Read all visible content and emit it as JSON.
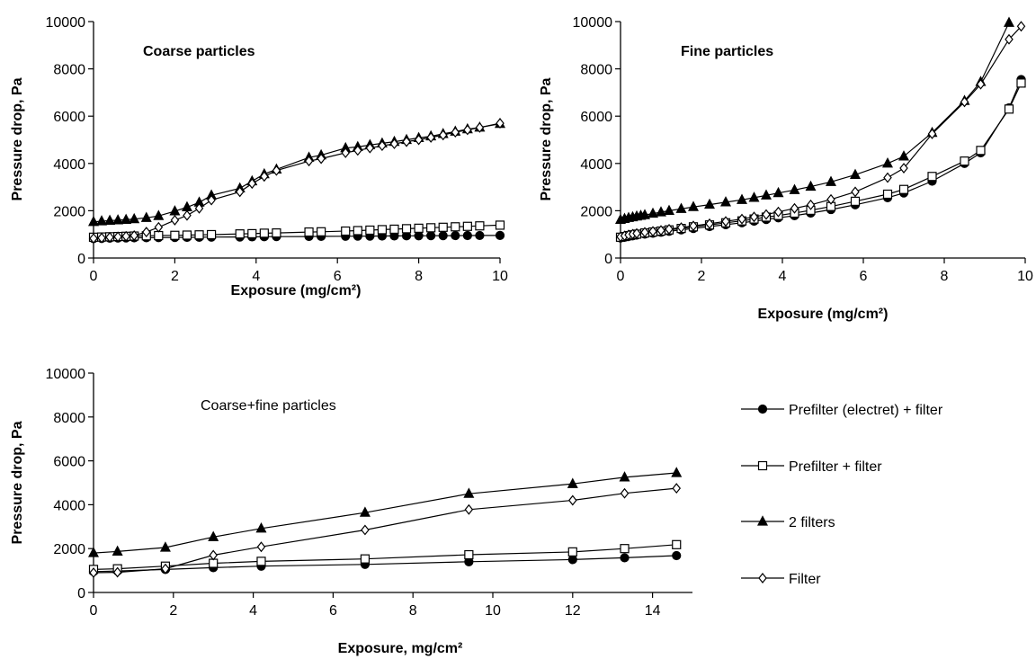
{
  "legend": {
    "placement": "right-of-bottom-chart",
    "entries": [
      {
        "name": "Prefilter (electret) + filter",
        "marker": "circle-filled"
      },
      {
        "name": "Prefilter + filter",
        "marker": "square-open"
      },
      {
        "name": "2 filters",
        "marker": "triangle-filled"
      },
      {
        "name": "Filter",
        "marker": "diamond-open"
      }
    ]
  },
  "chart_data": [
    {
      "type": "line",
      "annotation": "Coarse particles",
      "xlabel": "Exposure (mg/cm²)",
      "ylabel": "Pressure drop, Pa",
      "xlim": [
        0,
        10
      ],
      "ylim": [
        0,
        10000
      ],
      "xticks": [
        "0",
        "2",
        "4",
        "6",
        "8",
        "10"
      ],
      "yticks": [
        "0",
        "2000",
        "4000",
        "6000",
        "8000",
        "10000"
      ],
      "grid": false,
      "series": [
        {
          "name": "Prefilter (electret) + filter",
          "marker": "circle-filled",
          "x": [
            0,
            0.2,
            0.4,
            0.6,
            0.8,
            1.0,
            1.3,
            1.6,
            2.0,
            2.3,
            2.6,
            2.9,
            3.6,
            3.9,
            4.2,
            4.5,
            5.3,
            5.6,
            6.2,
            6.5,
            6.8,
            7.1,
            7.4,
            7.7,
            8.0,
            8.3,
            8.6,
            8.9,
            9.2,
            9.5,
            10.0
          ],
          "y": [
            820,
            830,
            840,
            845,
            850,
            855,
            860,
            865,
            870,
            875,
            880,
            885,
            890,
            895,
            900,
            905,
            910,
            915,
            920,
            925,
            928,
            932,
            935,
            938,
            940,
            943,
            946,
            948,
            950,
            953,
            955
          ]
        },
        {
          "name": "Prefilter + filter",
          "marker": "square-open",
          "x": [
            0,
            0.2,
            0.4,
            0.6,
            0.8,
            1.0,
            1.3,
            1.6,
            2.0,
            2.3,
            2.6,
            2.9,
            3.6,
            3.9,
            4.2,
            4.5,
            5.3,
            5.6,
            6.2,
            6.5,
            6.8,
            7.1,
            7.4,
            7.7,
            8.0,
            8.3,
            8.6,
            8.9,
            9.2,
            9.5,
            10.0
          ],
          "y": [
            880,
            890,
            900,
            910,
            920,
            930,
            940,
            950,
            960,
            970,
            980,
            990,
            1020,
            1030,
            1050,
            1060,
            1100,
            1110,
            1140,
            1160,
            1180,
            1200,
            1220,
            1240,
            1260,
            1280,
            1300,
            1320,
            1340,
            1360,
            1390
          ]
        },
        {
          "name": "2 filters",
          "marker": "triangle-filled",
          "x": [
            0,
            0.2,
            0.4,
            0.6,
            0.8,
            1.0,
            1.3,
            1.6,
            2.0,
            2.3,
            2.6,
            2.9,
            3.6,
            3.9,
            4.2,
            4.5,
            5.3,
            5.6,
            6.2,
            6.5,
            6.8,
            7.1,
            7.4,
            7.7,
            8.0,
            8.3,
            8.6,
            8.9,
            9.2,
            9.5,
            10.0
          ],
          "y": [
            1530,
            1560,
            1580,
            1600,
            1620,
            1650,
            1700,
            1780,
            1980,
            2150,
            2350,
            2650,
            2950,
            3250,
            3550,
            3750,
            4250,
            4350,
            4650,
            4700,
            4780,
            4850,
            4920,
            5000,
            5080,
            5150,
            5250,
            5350,
            5450,
            5520,
            5680
          ]
        },
        {
          "name": "Filter",
          "marker": "diamond-open",
          "x": [
            0,
            0.2,
            0.4,
            0.6,
            0.8,
            1.0,
            1.3,
            1.6,
            2.0,
            2.3,
            2.6,
            2.9,
            3.6,
            3.9,
            4.2,
            4.5,
            5.3,
            5.6,
            6.2,
            6.5,
            6.8,
            7.1,
            7.4,
            7.7,
            8.0,
            8.3,
            8.6,
            8.9,
            9.2,
            9.5,
            10.0
          ],
          "y": [
            830,
            850,
            880,
            900,
            920,
            950,
            1100,
            1300,
            1600,
            1800,
            2100,
            2450,
            2800,
            3150,
            3450,
            3700,
            4100,
            4200,
            4450,
            4550,
            4650,
            4750,
            4830,
            4920,
            5000,
            5100,
            5200,
            5320,
            5420,
            5520,
            5700
          ]
        }
      ]
    },
    {
      "type": "line",
      "annotation": "Fine particles",
      "xlabel": "Exposure (mg/cm²)",
      "ylabel": "Pressure drop, Pa",
      "xlim": [
        0,
        10
      ],
      "ylim": [
        0,
        10000
      ],
      "xticks": [
        "0",
        "2",
        "4",
        "6",
        "8",
        "10"
      ],
      "yticks": [
        "0",
        "2000",
        "4000",
        "6000",
        "8000",
        "10000"
      ],
      "grid": false,
      "series": [
        {
          "name": "Prefilter (electret) + filter",
          "marker": "circle-filled",
          "x": [
            0,
            0.1,
            0.2,
            0.3,
            0.4,
            0.6,
            0.8,
            1.0,
            1.2,
            1.5,
            1.8,
            2.2,
            2.6,
            3.0,
            3.3,
            3.6,
            3.9,
            4.3,
            4.7,
            5.2,
            5.8,
            6.6,
            7.0,
            7.7,
            8.5,
            8.9,
            9.6,
            9.9
          ],
          "y": [
            850,
            880,
            910,
            940,
            970,
            1010,
            1050,
            1090,
            1130,
            1190,
            1250,
            1330,
            1410,
            1490,
            1560,
            1630,
            1700,
            1790,
            1900,
            2050,
            2250,
            2550,
            2750,
            3250,
            4000,
            4450,
            6350,
            7550
          ]
        },
        {
          "name": "Prefilter + filter",
          "marker": "square-open",
          "x": [
            0,
            0.1,
            0.2,
            0.3,
            0.4,
            0.6,
            0.8,
            1.0,
            1.2,
            1.5,
            1.8,
            2.2,
            2.6,
            3.0,
            3.3,
            3.6,
            3.9,
            4.3,
            4.7,
            5.2,
            5.8,
            6.6,
            7.0,
            7.7,
            8.5,
            8.9,
            9.6,
            9.9
          ],
          "y": [
            880,
            910,
            950,
            980,
            1010,
            1060,
            1100,
            1140,
            1190,
            1250,
            1320,
            1400,
            1490,
            1570,
            1650,
            1730,
            1800,
            1900,
            2020,
            2180,
            2400,
            2700,
            2900,
            3450,
            4100,
            4550,
            6300,
            7400
          ]
        },
        {
          "name": "2 filters",
          "marker": "triangle-filled",
          "x": [
            0,
            0.1,
            0.2,
            0.3,
            0.4,
            0.5,
            0.6,
            0.8,
            1.0,
            1.2,
            1.5,
            1.8,
            2.2,
            2.6,
            3.0,
            3.3,
            3.6,
            3.9,
            4.3,
            4.7,
            5.2,
            5.8,
            6.6,
            7.0,
            7.7,
            8.5,
            8.9,
            9.6
          ],
          "y": [
            1620,
            1660,
            1700,
            1730,
            1760,
            1790,
            1820,
            1880,
            1940,
            2000,
            2080,
            2160,
            2260,
            2360,
            2460,
            2550,
            2650,
            2750,
            2880,
            3020,
            3220,
            3520,
            4000,
            4300,
            5300,
            6650,
            7450,
            9950
          ]
        },
        {
          "name": "Filter",
          "marker": "diamond-open",
          "x": [
            0,
            0.1,
            0.2,
            0.3,
            0.4,
            0.6,
            0.8,
            1.0,
            1.2,
            1.5,
            1.8,
            2.2,
            2.6,
            3.0,
            3.3,
            3.6,
            3.9,
            4.3,
            4.7,
            5.2,
            5.8,
            6.6,
            7.0,
            7.7,
            8.5,
            8.9,
            9.6,
            9.9
          ],
          "y": [
            900,
            940,
            980,
            1010,
            1040,
            1090,
            1130,
            1170,
            1220,
            1290,
            1360,
            1450,
            1550,
            1650,
            1740,
            1840,
            1950,
            2100,
            2250,
            2480,
            2800,
            3400,
            3800,
            5250,
            6600,
            7350,
            9250,
            9800
          ]
        }
      ]
    },
    {
      "type": "line",
      "annotation": "Coarse+fine particles",
      "xlabel": "Exposure, mg/cm²",
      "ylabel": "Pressure drop, Pa",
      "xlim": [
        0,
        15
      ],
      "ylim": [
        0,
        10000
      ],
      "xticks": [
        "0",
        "2",
        "4",
        "6",
        "8",
        "10",
        "12",
        "14"
      ],
      "yticks": [
        "0",
        "2000",
        "4000",
        "6000",
        "8000",
        "10000"
      ],
      "grid": false,
      "series": [
        {
          "name": "Prefilter (electret) + filter",
          "marker": "circle-filled",
          "x": [
            0,
            0.6,
            1.8,
            3.0,
            4.2,
            6.8,
            9.4,
            12.0,
            13.3,
            14.6
          ],
          "y": [
            950,
            980,
            1050,
            1130,
            1200,
            1280,
            1400,
            1500,
            1580,
            1680
          ]
        },
        {
          "name": "Prefilter + filter",
          "marker": "square-open",
          "x": [
            0,
            0.6,
            1.8,
            3.0,
            4.2,
            6.8,
            9.4,
            12.0,
            13.3,
            14.6
          ],
          "y": [
            1050,
            1080,
            1200,
            1330,
            1420,
            1530,
            1720,
            1850,
            2000,
            2180
          ]
        },
        {
          "name": "2 filters",
          "marker": "triangle-filled",
          "x": [
            0,
            0.6,
            1.8,
            3.0,
            4.2,
            6.8,
            9.4,
            12.0,
            13.3,
            14.6
          ],
          "y": [
            1800,
            1870,
            2050,
            2530,
            2920,
            3640,
            4500,
            4950,
            5250,
            5450
          ]
        },
        {
          "name": "Filter",
          "marker": "diamond-open",
          "x": [
            0,
            0.6,
            1.8,
            3.0,
            4.2,
            6.8,
            9.4,
            12.0,
            13.3,
            14.6
          ],
          "y": [
            900,
            920,
            1080,
            1700,
            2080,
            2850,
            3780,
            4200,
            4520,
            4750
          ]
        }
      ]
    }
  ]
}
